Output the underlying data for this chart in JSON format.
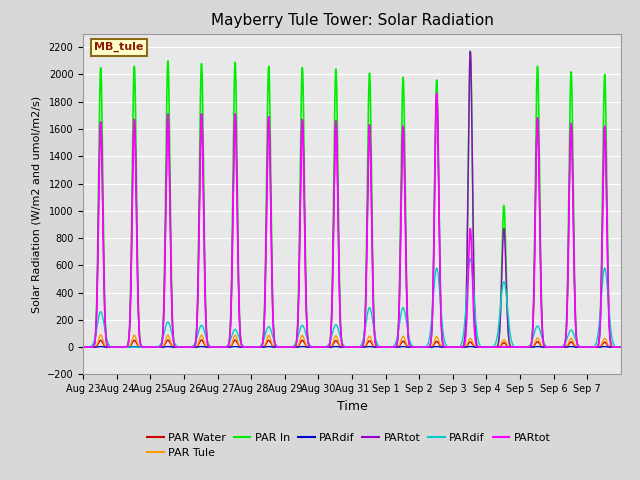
{
  "title": "Mayberry Tule Tower: Solar Radiation",
  "ylabel": "Solar Radiation (W/m2 and umol/m2/s)",
  "xlabel": "Time",
  "ylim": [
    -200,
    2300
  ],
  "yticks": [
    -200,
    0,
    200,
    400,
    600,
    800,
    1000,
    1200,
    1400,
    1600,
    1800,
    2000,
    2200
  ],
  "n_days": 16,
  "background_color": "#d8d8d8",
  "plot_bg_color": "#e8e8e8",
  "legend_label": "MB_tule",
  "legend_bg": "#ffffcc",
  "legend_border": "#8B6914",
  "xtick_labels": [
    "Aug 23",
    "Aug 24",
    "Aug 25",
    "Aug 26",
    "Aug 27",
    "Aug 28",
    "Aug 29",
    "Aug 30",
    "Aug 31",
    "Sep 1",
    "Sep 2",
    "Sep 3",
    "Sep 4",
    "Sep 5",
    "Sep 6",
    "Sep 7"
  ],
  "par_in_peaks": [
    2050,
    2060,
    2100,
    2080,
    2090,
    2060,
    2050,
    2040,
    2010,
    1980,
    1960,
    2170,
    1040,
    2060,
    2020,
    2000
  ],
  "par_tule_peaks": [
    90,
    88,
    88,
    88,
    88,
    86,
    86,
    84,
    82,
    80,
    78,
    65,
    55,
    68,
    66,
    64
  ],
  "par_water_peaks": [
    50,
    50,
    52,
    52,
    52,
    50,
    50,
    48,
    46,
    44,
    42,
    38,
    32,
    40,
    38,
    36
  ],
  "par_tot_mg_peaks": [
    1650,
    1670,
    1710,
    1710,
    1710,
    1690,
    1670,
    1660,
    1630,
    1620,
    1860,
    870,
    0,
    1680,
    1640,
    1620
  ],
  "par_dif_cy_peaks": [
    260,
    0,
    185,
    160,
    130,
    150,
    160,
    165,
    290,
    290,
    580,
    650,
    480,
    155,
    125,
    580
  ],
  "par_tot_pur_peaks": [
    1650,
    1670,
    1710,
    1710,
    1710,
    1690,
    1670,
    1660,
    1630,
    1620,
    1860,
    2170,
    870,
    1680,
    1640,
    1620
  ],
  "series_colors": {
    "par_water": "#cc0000",
    "par_tule": "#ff9900",
    "par_in": "#00ee00",
    "par_dif_bl": "#0000cc",
    "par_tot_pur": "#9900cc",
    "par_dif_cy": "#00cccc",
    "par_tot_mg": "#ff00ff"
  },
  "legend_entries": [
    {
      "label": "PAR Water",
      "color": "#cc0000"
    },
    {
      "label": "PAR Tule",
      "color": "#ff9900"
    },
    {
      "label": "PAR In",
      "color": "#00ee00"
    },
    {
      "label": "PARdif",
      "color": "#0000cc"
    },
    {
      "label": "PARtot",
      "color": "#9900cc"
    },
    {
      "label": "PARdif",
      "color": "#00cccc"
    },
    {
      "label": "PARtot",
      "color": "#ff00ff"
    }
  ]
}
